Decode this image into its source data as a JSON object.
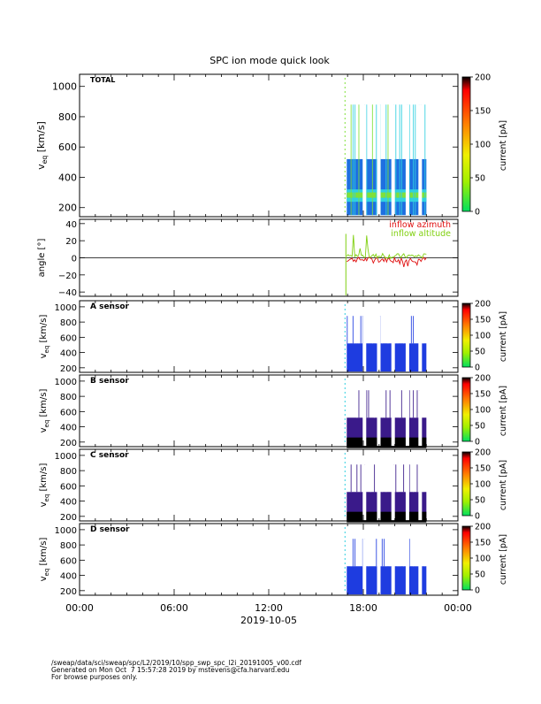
{
  "page": {
    "title": "SPC ion mode quick look",
    "date_label": "2019-10-05",
    "time_ticks": [
      "00:00",
      "06:00",
      "12:00",
      "18:00",
      "00:00"
    ],
    "footer": {
      "line1": "/sweap/data/sci/sweap/spc/L2/2019/10/spp_swp_spc_l2i_20191005_v00.cdf",
      "line2": "Generated on Mon Oct  7 15:57:28 2019 by mstevens@cfa.harvard.edu",
      "line3": "For browse purposes only."
    }
  },
  "colors": {
    "spectrogram_bg": "#1e6fe0",
    "sensor_bg_a": "#1e3ce0",
    "sensor_bg_dark": "#3a1a8a",
    "green": "#7fe03a",
    "cyan": "#30d0e0",
    "azimuth": "#e01010",
    "altitude": "#80d010"
  },
  "chart_data": [
    {
      "type": "heatmap",
      "panel_label": "TOTAL",
      "ylabel_main": "v",
      "ylabel_sub": "eq",
      "ylabel_unit": " [km/s]",
      "yticks": [
        "1000",
        "800",
        "600",
        "400",
        "200"
      ],
      "ylim": [
        140,
        1080
      ],
      "xlim_hours": [
        0,
        24
      ],
      "data_start_hours": 16.95,
      "data_end_hours": 22.0,
      "vmin_kms": 150,
      "vmax_kms": 880,
      "colorbar": {
        "label": "current [pA]",
        "ticks": [
          "200",
          "150",
          "100",
          "50",
          "0"
        ],
        "range": [
          0,
          200
        ]
      }
    },
    {
      "type": "line",
      "ylabel": "angle [°]",
      "yticks": [
        "40",
        "20",
        "0",
        "−20",
        "−40"
      ],
      "ylim": [
        -45,
        45
      ],
      "xlim_hours": [
        0,
        24
      ],
      "series": [
        {
          "name": "inflow azimuth",
          "color": "#e01010",
          "baseline": -2
        },
        {
          "name": "inflow altitude",
          "color": "#80d010",
          "baseline": 2
        }
      ]
    },
    {
      "type": "heatmap",
      "panel_label": "A sensor",
      "yticks": [
        "1000",
        "800",
        "600",
        "400",
        "200"
      ],
      "ylim": [
        140,
        1080
      ],
      "colorbar": {
        "label": "current [pA]",
        "ticks": [
          "200",
          "150",
          "100",
          "50",
          "0"
        ],
        "range": [
          0,
          200
        ]
      }
    },
    {
      "type": "heatmap",
      "panel_label": "B sensor",
      "yticks": [
        "1000",
        "800",
        "600",
        "400",
        "200"
      ],
      "ylim": [
        140,
        1080
      ],
      "colorbar": {
        "label": "current [pA]",
        "ticks": [
          "200",
          "150",
          "100",
          "50",
          "0"
        ],
        "range": [
          0,
          200
        ]
      }
    },
    {
      "type": "heatmap",
      "panel_label": "C sensor",
      "yticks": [
        "1000",
        "800",
        "600",
        "400",
        "200"
      ],
      "ylim": [
        140,
        1080
      ],
      "colorbar": {
        "label": "current [pA]",
        "ticks": [
          "200",
          "150",
          "100",
          "50",
          "0"
        ],
        "range": [
          0,
          200
        ]
      }
    },
    {
      "type": "heatmap",
      "panel_label": "D sensor",
      "yticks": [
        "1000",
        "800",
        "600",
        "400",
        "200"
      ],
      "ylim": [
        140,
        1080
      ],
      "colorbar": {
        "label": "current [pA]",
        "ticks": [
          "200",
          "150",
          "100",
          "50",
          "0"
        ],
        "range": [
          0,
          200
        ]
      }
    }
  ]
}
